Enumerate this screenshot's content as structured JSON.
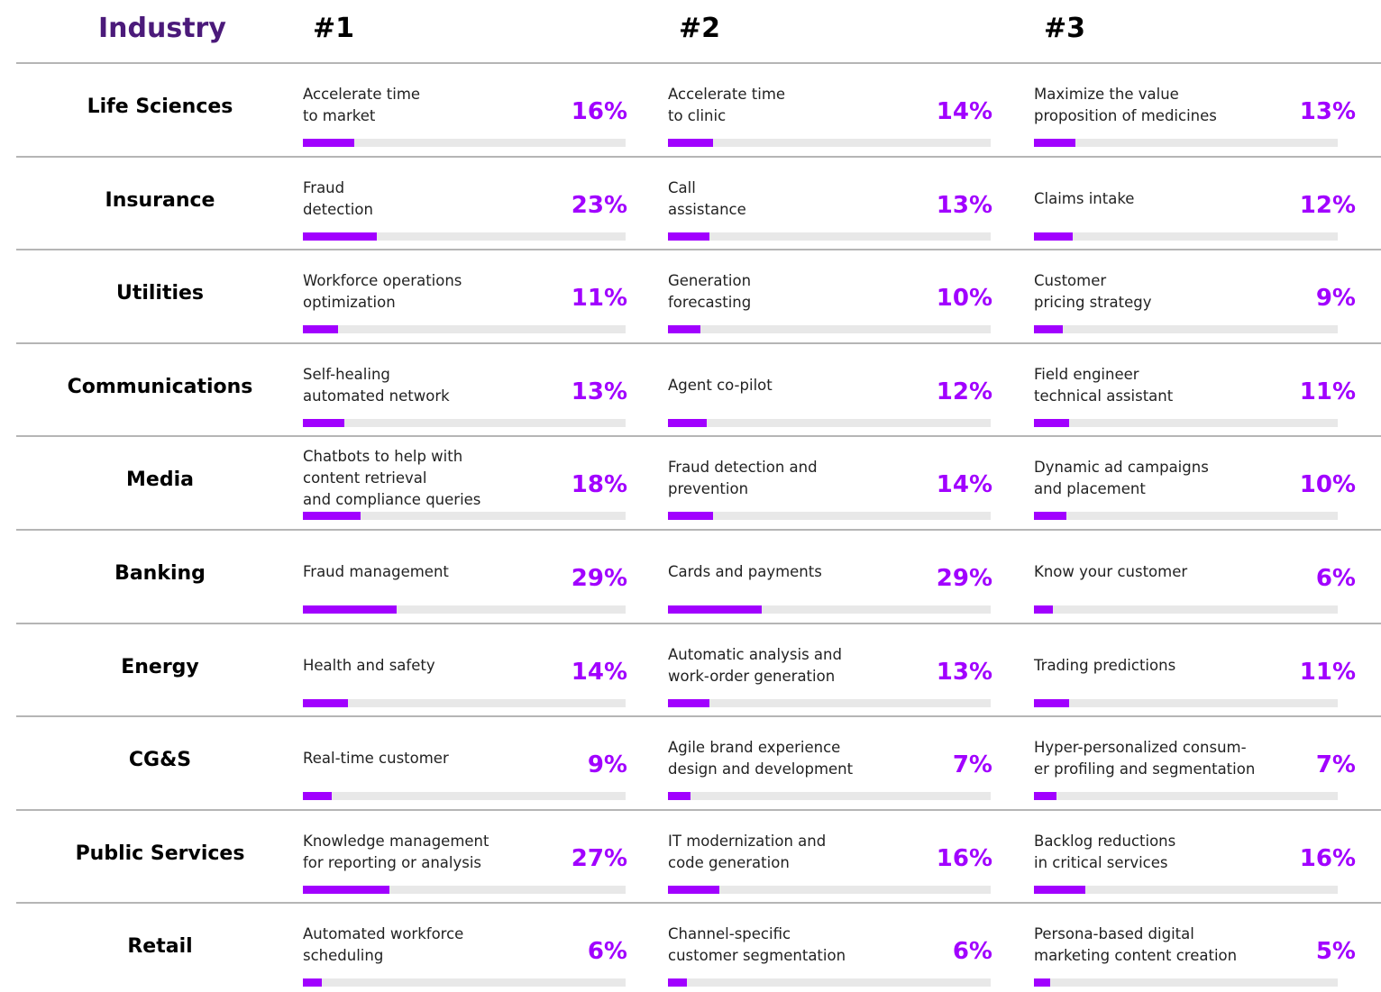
{
  "header": {
    "industry": "Industry",
    "ranks": [
      "#1",
      "#2",
      "#3"
    ]
  },
  "rows": [
    {
      "industry": "Life Sciences",
      "items": [
        {
          "text": "Accelerate time\nto market",
          "value": 16,
          "label": "16%"
        },
        {
          "text": "Accelerate time\nto clinic",
          "value": 14,
          "label": "14%"
        },
        {
          "text": "Maximize the value\nproposition of medicines",
          "value": 13,
          "label": "13%"
        }
      ]
    },
    {
      "industry": "Insurance",
      "items": [
        {
          "text": "Fraud\ndetection",
          "value": 23,
          "label": "23%"
        },
        {
          "text": "Call\nassistance",
          "value": 13,
          "label": "13%"
        },
        {
          "text": "Claims intake",
          "value": 12,
          "label": "12%"
        }
      ]
    },
    {
      "industry": "Utilities",
      "items": [
        {
          "text": "Workforce operations\noptimization",
          "value": 11,
          "label": "11%"
        },
        {
          "text": "Generation\nforecasting",
          "value": 10,
          "label": "10%"
        },
        {
          "text": "Customer\npricing strategy",
          "value": 9,
          "label": "9%"
        }
      ]
    },
    {
      "industry": "Communications",
      "items": [
        {
          "text": "Self-healing\nautomated network",
          "value": 13,
          "label": "13%"
        },
        {
          "text": "Agent co-pilot",
          "value": 12,
          "label": "12%"
        },
        {
          "text": "Field engineer\ntechnical assistant",
          "value": 11,
          "label": "11%"
        }
      ]
    },
    {
      "industry": "Media",
      "items": [
        {
          "text": "Chatbots to help with\ncontent retrieval\nand compliance queries",
          "value": 18,
          "label": "18%"
        },
        {
          "text": "Fraud detection and\nprevention",
          "value": 14,
          "label": "14%"
        },
        {
          "text": "Dynamic ad campaigns\nand placement",
          "value": 10,
          "label": "10%"
        }
      ]
    },
    {
      "industry": "Banking",
      "items": [
        {
          "text": "Fraud management",
          "value": 29,
          "label": "29%"
        },
        {
          "text": "Cards and payments",
          "value": 29,
          "label": "29%"
        },
        {
          "text": "Know your customer",
          "value": 6,
          "label": "6%"
        }
      ]
    },
    {
      "industry": "Energy",
      "items": [
        {
          "text": "Health and safety",
          "value": 14,
          "label": "14%"
        },
        {
          "text": "Automatic analysis and\nwork-order generation",
          "value": 13,
          "label": "13%"
        },
        {
          "text": "Trading predictions",
          "value": 11,
          "label": "11%"
        }
      ]
    },
    {
      "industry": "CG&S",
      "items": [
        {
          "text": "Real-time customer",
          "value": 9,
          "label": "9%"
        },
        {
          "text": "Agile brand experience\ndesign and development",
          "value": 7,
          "label": "7%"
        },
        {
          "text": "Hyper-personalized  consum-\ner profiling and segmentation",
          "value": 7,
          "label": "7%"
        }
      ]
    },
    {
      "industry": "Public Services",
      "items": [
        {
          "text": "Knowledge management\nfor reporting or analysis",
          "value": 27,
          "label": "27%"
        },
        {
          "text": "IT modernization and\ncode generation",
          "value": 16,
          "label": "16%"
        },
        {
          "text": "Backlog reductions\nin critical services",
          "value": 16,
          "label": "16%"
        }
      ]
    },
    {
      "industry": "Retail",
      "items": [
        {
          "text": "Automated workforce\nscheduling",
          "value": 6,
          "label": "6%"
        },
        {
          "text": "Channel-specific\ncustomer segmentation",
          "value": 6,
          "label": "6%"
        },
        {
          "text": "Persona-based digital\nmarketing content creation",
          "value": 5,
          "label": "5%"
        }
      ]
    }
  ]
}
